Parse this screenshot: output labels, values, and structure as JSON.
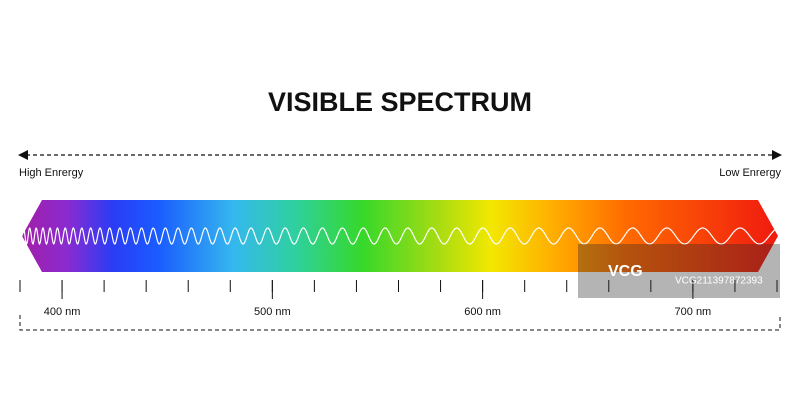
{
  "title": "VISIBLE SPECTRUM",
  "energy": {
    "left": "High Enrergy",
    "right": "Low Enrergy"
  },
  "axis": {
    "range": [
      380,
      740
    ],
    "ticks": [
      380,
      400,
      420,
      440,
      460,
      480,
      500,
      520,
      540,
      560,
      580,
      600,
      620,
      640,
      660,
      680,
      700,
      720,
      740
    ],
    "labeled_ticks": [
      {
        "value": 400,
        "label": "400 nm"
      },
      {
        "value": 500,
        "label": "500 nm"
      },
      {
        "value": 600,
        "label": "600 nm"
      },
      {
        "value": 700,
        "label": "700 nm"
      }
    ]
  },
  "watermark": {
    "logo": "VCG",
    "id": "VCG211397872393"
  }
}
